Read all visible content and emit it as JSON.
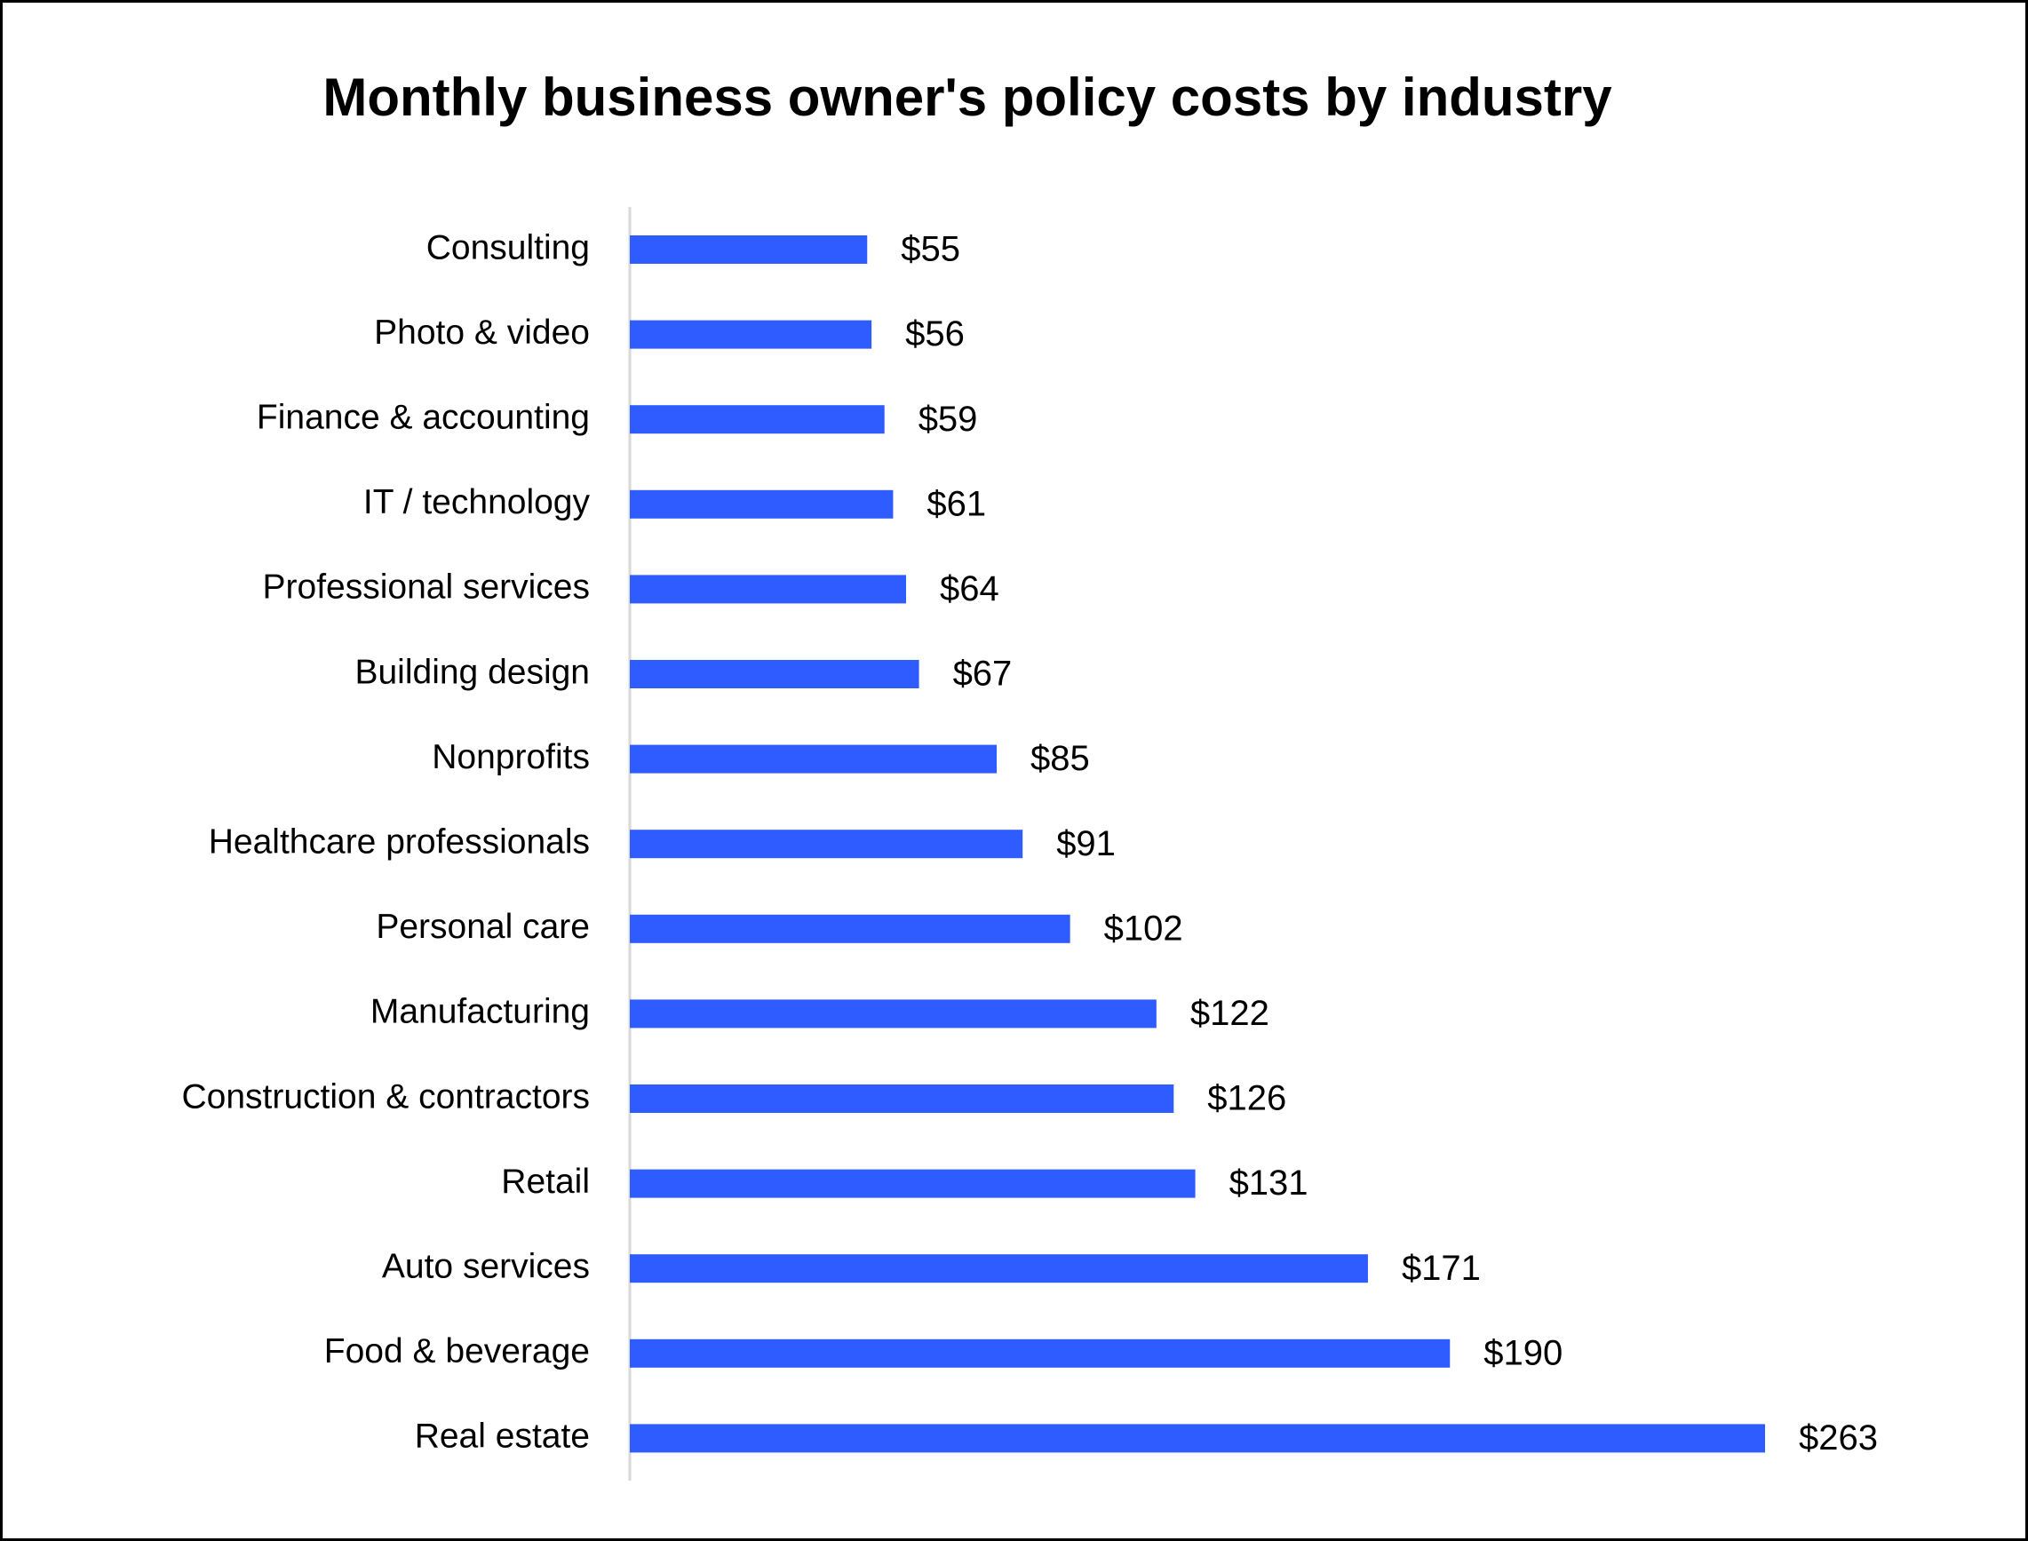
{
  "chart_data": {
    "type": "bar",
    "orientation": "horizontal",
    "title": "Monthly business owner's policy costs by industry",
    "categories": [
      "Consulting",
      "Photo & video",
      "Finance & accounting",
      "IT / technology",
      "Professional services",
      "Building design",
      "Nonprofits",
      "Healthcare professionals",
      "Personal care",
      "Manufacturing",
      "Construction & contractors",
      "Retail",
      "Auto services",
      "Food & beverage",
      "Real estate"
    ],
    "values": [
      55,
      56,
      59,
      61,
      64,
      67,
      85,
      91,
      102,
      122,
      126,
      131,
      171,
      190,
      263
    ],
    "value_labels": [
      "$55",
      "$56",
      "$59",
      "$61",
      "$64",
      "$67",
      "$85",
      "$91",
      "$102",
      "$122",
      "$126",
      "$131",
      "$171",
      "$190",
      "$263"
    ],
    "color": "#2f5cff"
  }
}
